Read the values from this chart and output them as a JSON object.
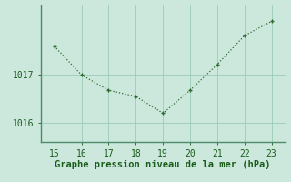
{
  "x": [
    15,
    16,
    17,
    18,
    19,
    20,
    21,
    22,
    23
  ],
  "y": [
    1017.6,
    1017.0,
    1016.68,
    1016.55,
    1016.2,
    1016.68,
    1017.22,
    1017.82,
    1018.12
  ],
  "line_color": "#2d6a2d",
  "marker": "+",
  "bg_color": "#cce8dc",
  "grid_color": "#99ccb8",
  "axis_color": "#4d8a6a",
  "xlabel": "Graphe pression niveau de la mer (hPa)",
  "xlabel_color": "#1a5c1a",
  "xlabel_fontsize": 7.5,
  "ytick_labels": [
    "1016",
    "1017"
  ],
  "ytick_values": [
    1016,
    1017
  ],
  "xlim": [
    14.5,
    23.5
  ],
  "ylim": [
    1015.6,
    1018.45
  ],
  "xticks": [
    15,
    16,
    17,
    18,
    19,
    20,
    21,
    22,
    23
  ],
  "tick_fontsize": 7,
  "tick_color": "#1a5c1a"
}
